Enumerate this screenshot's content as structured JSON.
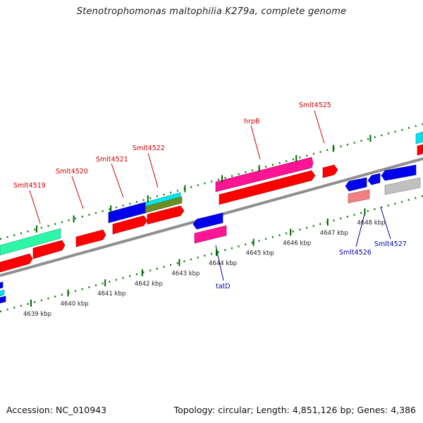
{
  "title": "Stenotrophomonas maltophilia K279a, complete genome",
  "footer": {
    "accession": "Accession: NC_010943",
    "stats": "Topology: circular; Length: 4,851,126 bp; Genes: 4,386"
  },
  "colors": {
    "red": "#ff0000",
    "blue": "#0000ee",
    "pink": "#ff1493",
    "cyan": "#00e5ee",
    "aquamarine": "#2ef5a8",
    "olive": "#6b8e23",
    "salmon": "#f08080",
    "grey": "#b8b8b8",
    "backbone": "#8f8f8f",
    "tick": "#006400",
    "top_label": "#cc0000",
    "bottom_label": "#0000aa"
  },
  "ticks": [
    {
      "label": "4639 kbp",
      "kbp": 4639
    },
    {
      "label": "4640 kbp",
      "kbp": 4640
    },
    {
      "label": "4641 kbp",
      "kbp": 4641
    },
    {
      "label": "4642 kbp",
      "kbp": 4642
    },
    {
      "label": "4643 kbp",
      "kbp": 4643
    },
    {
      "label": "4644 kbp",
      "kbp": 4644
    },
    {
      "label": "4645 kbp",
      "kbp": 4645
    },
    {
      "label": "4646 kbp",
      "kbp": 4646
    },
    {
      "label": "4647 kbp",
      "kbp": 4647
    },
    {
      "label": "4648 kbp",
      "kbp": 4648
    }
  ],
  "gene_labels_top": [
    {
      "label": "Smlt4519"
    },
    {
      "label": "Smlt4520"
    },
    {
      "label": "Smlt4521"
    },
    {
      "label": "Smlt4522"
    },
    {
      "label": "hrpB"
    },
    {
      "label": "Smlt4525"
    }
  ],
  "gene_labels_bottom": [
    {
      "label": "tatD"
    },
    {
      "label": "Smlt4526"
    },
    {
      "label": "Smlt4527"
    }
  ]
}
